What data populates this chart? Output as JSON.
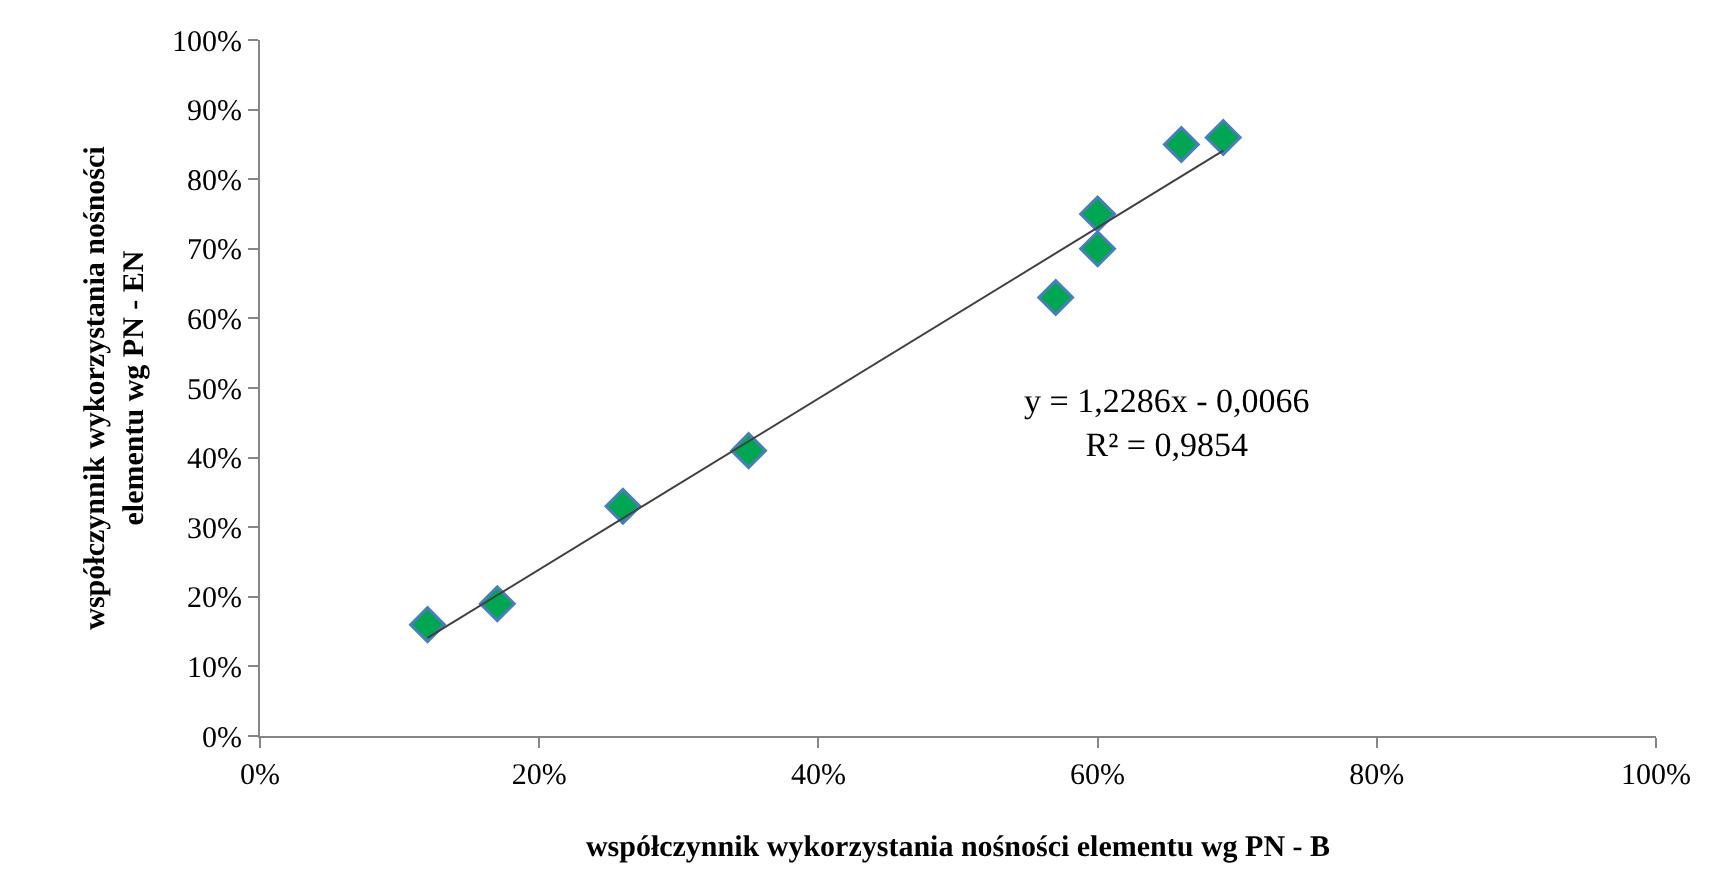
{
  "chart_data": {
    "type": "scatter",
    "xlabel": "współczynnik wykorzystania nośności elementu wg PN - B",
    "ylabel": "współczynnik wykorzystania nośności\nelementu wg PN - EN",
    "series": [
      {
        "color": "#00a651",
        "marker": "diamond",
        "x": [
          0.12,
          0.17,
          0.26,
          0.35,
          0.57,
          0.6,
          0.6,
          0.66,
          0.69
        ],
        "values": [
          0.16,
          0.19,
          0.33,
          0.41,
          0.63,
          0.7,
          0.75,
          0.85,
          0.86
        ]
      },
      {
        "type": "line",
        "color": "#404040",
        "marker": "none",
        "line_style": "solid",
        "x": [
          0.12,
          0.69
        ],
        "values": [
          0.141,
          0.841
        ]
      }
    ],
    "xlim": [
      0,
      1
    ],
    "ylim": [
      0,
      1
    ],
    "xticks": [
      {
        "value": 0,
        "label": "0%"
      },
      {
        "value": 0.2,
        "label": "20%"
      },
      {
        "value": 0.4,
        "label": "40%"
      },
      {
        "value": 0.6,
        "label": "60%"
      },
      {
        "value": 0.8,
        "label": "80%"
      },
      {
        "value": 1,
        "label": "100%"
      }
    ],
    "yticks": [
      {
        "value": 0,
        "label": "0%"
      },
      {
        "value": 0.1,
        "label": "10%"
      },
      {
        "value": 0.2,
        "label": "20%"
      },
      {
        "value": 0.3,
        "label": "30%"
      },
      {
        "value": 0.4,
        "label": "40%"
      },
      {
        "value": 0.5,
        "label": "50%"
      },
      {
        "value": 0.6,
        "label": "60%"
      },
      {
        "value": 0.7,
        "label": "70%"
      },
      {
        "value": 0.8,
        "label": "80%"
      },
      {
        "value": 0.9,
        "label": "90%"
      },
      {
        "value": 1,
        "label": "100%"
      }
    ],
    "annotations": [
      "y = 1,2286x - 0,0066\nR² = 0,9854"
    ]
  }
}
